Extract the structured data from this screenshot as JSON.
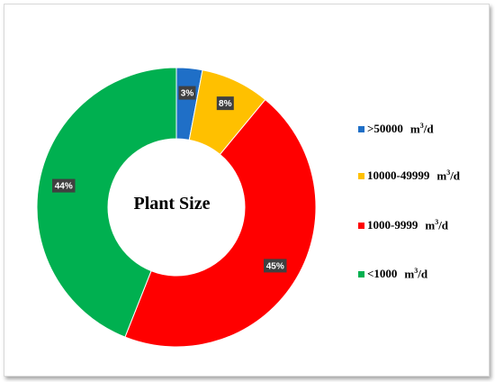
{
  "chart_data": {
    "type": "donut",
    "title": "Plant Size",
    "unit_prefix": "m",
    "unit_sup": "3",
    "unit_suffix": "/d",
    "series": [
      {
        "name": ">50000",
        "value": 3,
        "label": "3%",
        "color": "#1f6fc7"
      },
      {
        "name": "10000-49999",
        "value": 8,
        "label": "8%",
        "color": "#ffc000"
      },
      {
        "name": "1000-9999",
        "value": 45,
        "label": "45%",
        "color": "#ff0000"
      },
      {
        "name": "<1000",
        "value": 44,
        "label": "44%",
        "color": "#00b050"
      }
    ],
    "legend_position": "right"
  }
}
